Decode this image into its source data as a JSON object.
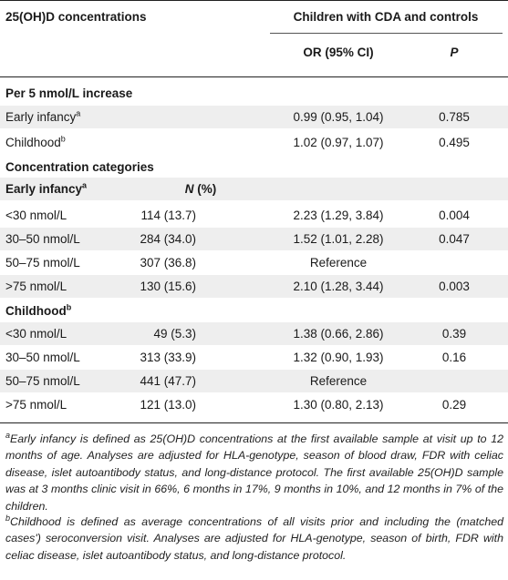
{
  "header": {
    "col1": "25(OH)D concentrations",
    "group": "Children with CDA and controls",
    "col_or": "OR (95% CI)",
    "col_p": "P",
    "col_n": "N (%)"
  },
  "sections": {
    "per5": "Per 5 nmol/L increase",
    "categories": "Concentration categories",
    "early": "Early infancy",
    "early_sup": "a",
    "child": "Childhood",
    "child_sup": "b"
  },
  "per5_rows": [
    {
      "label": "Early infancy",
      "sup": "a",
      "or": "0.99 (0.95, 1.04)",
      "p": "0.785"
    },
    {
      "label": "Childhood",
      "sup": "b",
      "or": "1.02 (0.97, 1.07)",
      "p": "0.495"
    }
  ],
  "early_rows": [
    {
      "label": "<30 nmol/L",
      "n": "114 (13.7)",
      "or": "2.23 (1.29, 3.84)",
      "p": "0.004"
    },
    {
      "label": "30–50 nmol/L",
      "n": "284 (34.0)",
      "or": "1.52 (1.01, 2.28)",
      "p": "0.047"
    },
    {
      "label": "50–75 nmol/L",
      "n": "307 (36.8)",
      "or": "Reference",
      "p": ""
    },
    {
      "label": ">75 nmol/L",
      "n": "130 (15.6)",
      "or": "2.10 (1.28, 3.44)",
      "p": "0.003"
    }
  ],
  "child_rows": [
    {
      "label": "<30 nmol/L",
      "n": "49 (5.3)",
      "or": "1.38 (0.66, 2.86)",
      "p": "0.39"
    },
    {
      "label": "30–50 nmol/L",
      "n": "313 (33.9)",
      "or": "1.32 (0.90, 1.93)",
      "p": "0.16"
    },
    {
      "label": "50–75 nmol/L",
      "n": "441 (47.7)",
      "or": "Reference",
      "p": ""
    },
    {
      "label": ">75 nmol/L",
      "n": "121 (13.0)",
      "or": "1.30 (0.80, 2.13)",
      "p": "0.29"
    }
  ],
  "footnotes": {
    "a_marker": "a",
    "a_text": "Early infancy is defined as 25(OH)D concentrations at the first available sample at visit up to 12 months of age. Analyses are adjusted for HLA-genotype, season of blood draw, FDR with celiac disease, islet autoantibody status, and long-distance protocol. The first available 25(OH)D sample was at 3 months clinic visit in 66%, 6 months in 17%, 9 months in 10%, and 12 months in 7% of the children.",
    "b_marker": "b",
    "b_text": "Childhood is defined as average concentrations of all visits prior and including the (matched cases') seroconversion visit. Analyses are adjusted for HLA-genotype, season of birth, FDR with celiac disease, islet autoantibody status, and long-distance protocol."
  }
}
